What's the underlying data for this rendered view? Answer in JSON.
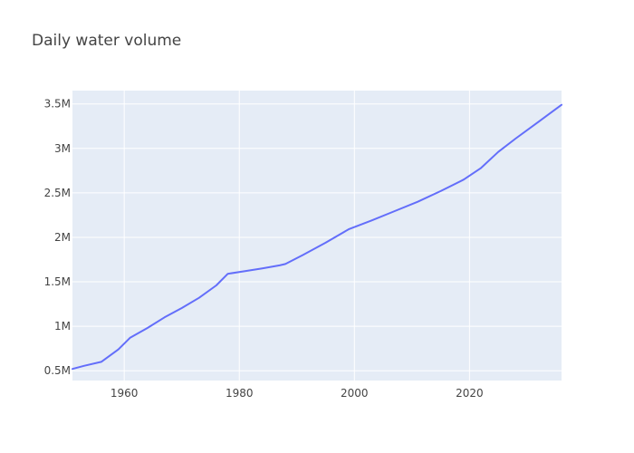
{
  "chart_data": {
    "type": "line",
    "title": "Daily water volume",
    "xlabel": "",
    "ylabel": "",
    "xlim": [
      1951,
      2036
    ],
    "ylim": [
      390000,
      3650000
    ],
    "grid": true,
    "legend": "none",
    "colors": {
      "plot_bg": "#e5ecf6",
      "grid": "#ffffff",
      "line": "#636efa",
      "text": "#444444"
    },
    "x_ticks": [
      1960,
      1980,
      2000,
      2020
    ],
    "x_tick_labels": [
      "1960",
      "1980",
      "2000",
      "2020"
    ],
    "y_ticks": [
      500000,
      1000000,
      1500000,
      2000000,
      2500000,
      3000000,
      3500000
    ],
    "y_tick_labels": [
      "0.5M",
      "1M",
      "1.5M",
      "2M",
      "2.5M",
      "3M",
      "3.5M"
    ],
    "series": [
      {
        "x": [
          1951,
          1953,
          1956,
          1959,
          1961,
          1964,
          1967,
          1970,
          1973,
          1976,
          1978,
          1981,
          1984,
          1987,
          1988,
          1991,
          1995,
          1999,
          2003,
          2007,
          2011,
          2015,
          2019,
          2022,
          2025,
          2028,
          2032,
          2036
        ],
        "values": [
          520000,
          555000,
          600000,
          740000,
          870000,
          980000,
          1100000,
          1205000,
          1320000,
          1460000,
          1590000,
          1620000,
          1650000,
          1685000,
          1700000,
          1800000,
          1940000,
          2090000,
          2190000,
          2295000,
          2400000,
          2520000,
          2650000,
          2780000,
          2960000,
          3110000,
          3300000,
          3490000
        ]
      }
    ]
  }
}
